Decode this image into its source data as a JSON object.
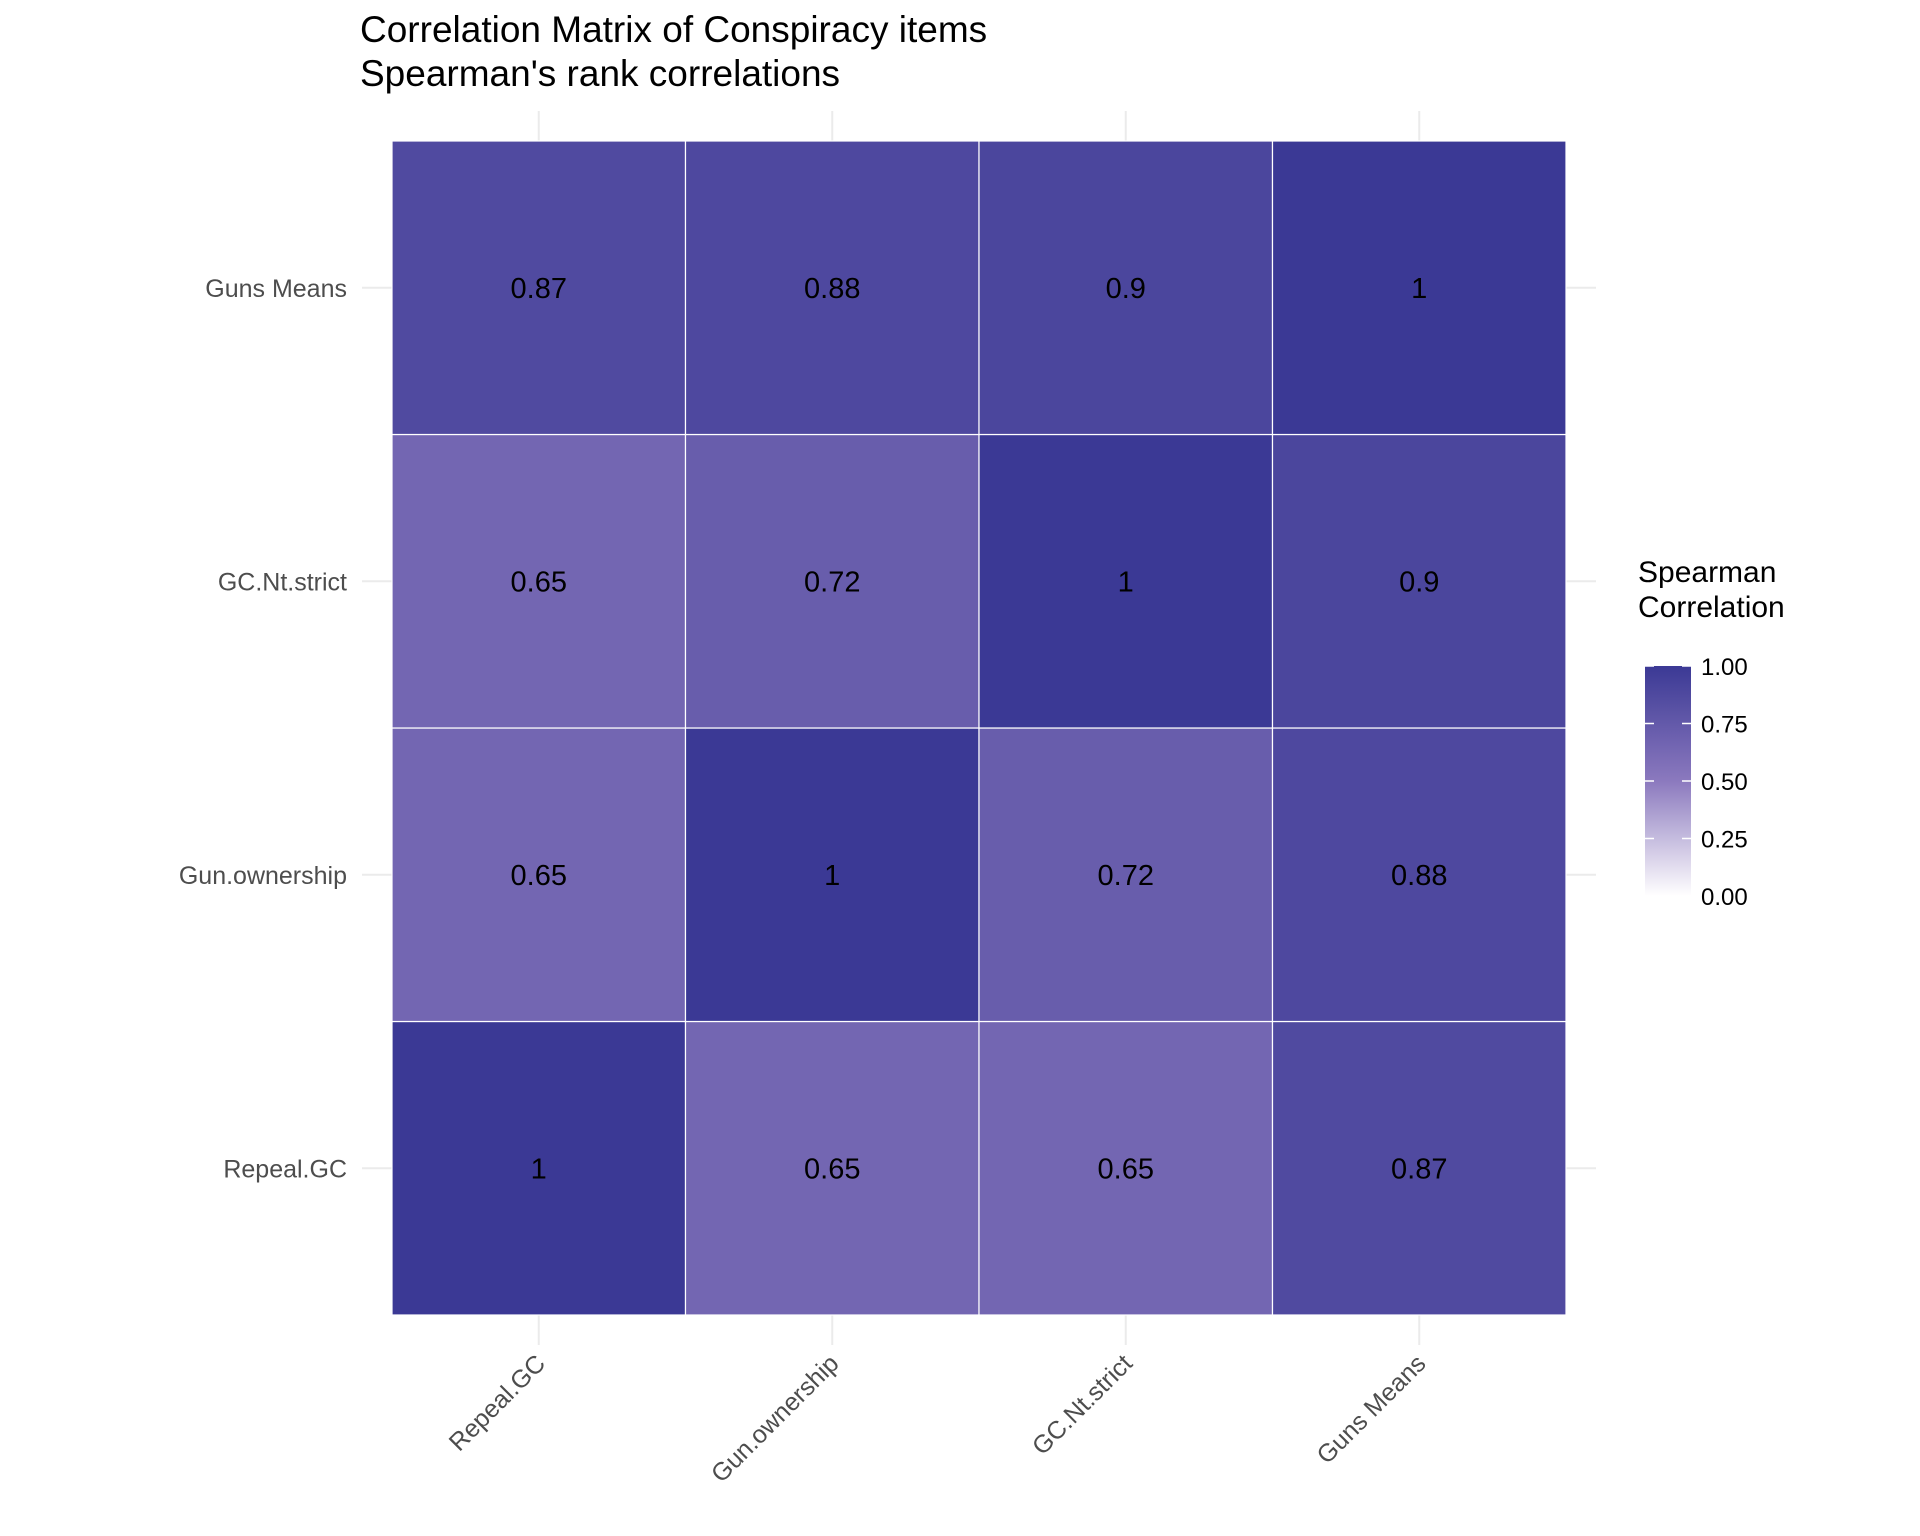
{
  "chart_data": {
    "type": "heatmap",
    "title": "Correlation Matrix of Conspiracy items",
    "subtitle": "Spearman's rank correlations",
    "x_categories": [
      "Repeal.GC",
      "Gun.ownership",
      "GC.Nt.strict",
      "Guns Means"
    ],
    "y_categories": [
      "Repeal.GC",
      "Gun.ownership",
      "GC.Nt.strict",
      "Guns Means"
    ],
    "values": [
      [
        1,
        0.65,
        0.65,
        0.87
      ],
      [
        0.65,
        1,
        0.72,
        0.88
      ],
      [
        0.65,
        0.72,
        1,
        0.9
      ],
      [
        0.87,
        0.88,
        0.9,
        1
      ]
    ],
    "cell_labels": [
      [
        "1",
        "0.65",
        "0.65",
        "0.87"
      ],
      [
        "0.65",
        "1",
        "0.72",
        "0.88"
      ],
      [
        "0.65",
        "0.72",
        "1",
        "0.9"
      ],
      [
        "0.87",
        "0.88",
        "0.9",
        "1"
      ]
    ],
    "legend": {
      "title_line1": "Spearman",
      "title_line2": "Correlation",
      "ticks": [
        "1.00",
        "0.75",
        "0.50",
        "0.25",
        "0.00"
      ],
      "tick_values": [
        1,
        0.75,
        0.5,
        0.25,
        0
      ],
      "range": [
        0,
        1
      ],
      "placement": "right"
    },
    "colors": {
      "low": "#ffffff",
      "high": "#3b3995",
      "cell_border": "#ffffff",
      "grid": "#ebebeb"
    },
    "grid": true
  }
}
